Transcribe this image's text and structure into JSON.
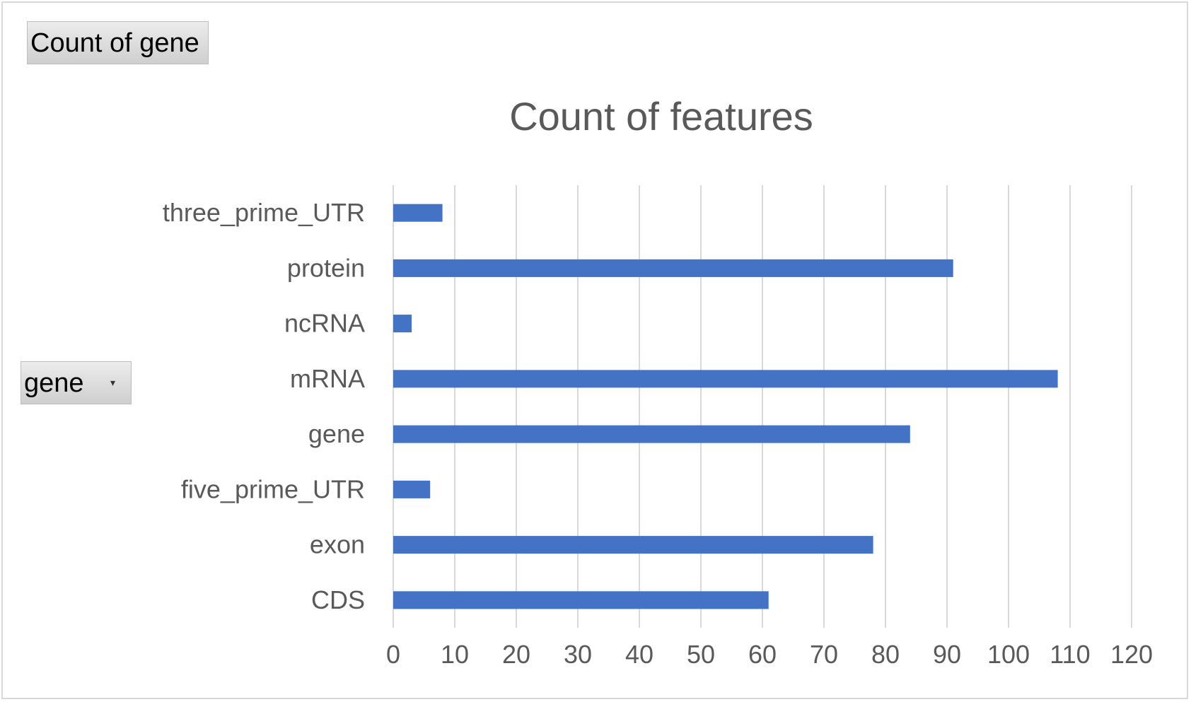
{
  "pivot": {
    "values_field_label": "Count of gene",
    "axis_field_label": "gene",
    "axis_field_caret_icon": "dropdown-arrow-icon"
  },
  "chart_data": {
    "type": "bar",
    "orientation": "horizontal",
    "title": "Count of features",
    "xlabel": "",
    "ylabel": "",
    "categories": [
      "CDS",
      "exon",
      "five_prime_UTR",
      "gene",
      "mRNA",
      "ncRNA",
      "protein",
      "three_prime_UTR"
    ],
    "values": [
      61,
      78,
      6,
      84,
      108,
      3,
      91,
      8
    ],
    "xlim": [
      0,
      120
    ],
    "xticks": [
      "0",
      "10",
      "20",
      "30",
      "40",
      "50",
      "60",
      "70",
      "80",
      "90",
      "100",
      "110",
      "120"
    ],
    "grid": true,
    "legend": "none",
    "bar_color": "#4472C4"
  }
}
